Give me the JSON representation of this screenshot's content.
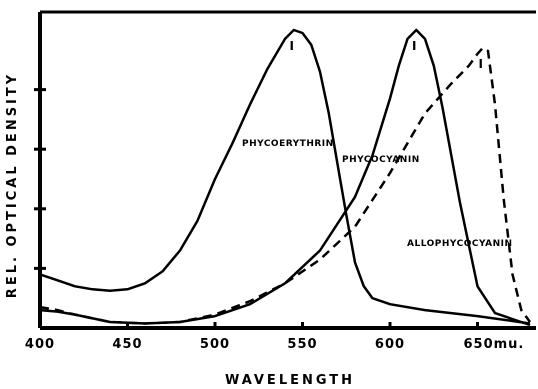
{
  "chart_data": {
    "type": "line",
    "xlabel": "WAVELENGTH",
    "ylabel": "REL. OPTICAL DENSITY",
    "xlim": [
      400,
      680
    ],
    "ylim": [
      0,
      1.0
    ],
    "grid": false,
    "legend": "none",
    "x_ticks": [
      {
        "value": 400,
        "label": "400"
      },
      {
        "value": 450,
        "label": "450"
      },
      {
        "value": 500,
        "label": "500"
      },
      {
        "value": 550,
        "label": "550"
      },
      {
        "value": 600,
        "label": "600"
      },
      {
        "value": 650,
        "label": "650mu."
      }
    ],
    "y_ticks": [
      0.2,
      0.4,
      0.6,
      0.8
    ],
    "series": [
      {
        "name": "PHYCOERYTHRIN",
        "style": "solid",
        "peak_label": "I",
        "x": [
          400,
          410,
          420,
          430,
          440,
          450,
          460,
          470,
          480,
          490,
          500,
          510,
          520,
          530,
          540,
          545,
          550,
          555,
          560,
          565,
          570,
          575,
          580,
          585,
          590,
          600,
          620,
          650,
          680
        ],
        "y": [
          0.18,
          0.16,
          0.14,
          0.13,
          0.125,
          0.13,
          0.15,
          0.19,
          0.26,
          0.36,
          0.5,
          0.62,
          0.75,
          0.87,
          0.97,
          1.0,
          0.99,
          0.95,
          0.86,
          0.72,
          0.55,
          0.38,
          0.22,
          0.14,
          0.1,
          0.08,
          0.06,
          0.04,
          0.015
        ]
      },
      {
        "name": "PHYCOCYANIN",
        "style": "solid",
        "peak_label": "I",
        "x": [
          400,
          410,
          420,
          440,
          460,
          480,
          500,
          520,
          540,
          560,
          580,
          590,
          600,
          605,
          610,
          615,
          620,
          625,
          630,
          640,
          650,
          660,
          680
        ],
        "y": [
          0.06,
          0.055,
          0.045,
          0.02,
          0.015,
          0.02,
          0.04,
          0.08,
          0.15,
          0.26,
          0.44,
          0.58,
          0.77,
          0.88,
          0.97,
          1.0,
          0.97,
          0.88,
          0.74,
          0.42,
          0.14,
          0.05,
          0.01
        ]
      },
      {
        "name": "ALLOPHYCOCYANIN",
        "style": "dashed",
        "peak_label": "I",
        "x": [
          400,
          410,
          420,
          440,
          460,
          480,
          500,
          520,
          540,
          560,
          580,
          600,
          620,
          635,
          645,
          650,
          653,
          656,
          660,
          665,
          670,
          675,
          680
        ],
        "y": [
          0.07,
          0.06,
          0.045,
          0.02,
          0.015,
          0.02,
          0.045,
          0.09,
          0.15,
          0.23,
          0.34,
          0.52,
          0.72,
          0.82,
          0.88,
          0.92,
          0.94,
          0.93,
          0.75,
          0.43,
          0.18,
          0.06,
          0.02
        ]
      }
    ]
  }
}
